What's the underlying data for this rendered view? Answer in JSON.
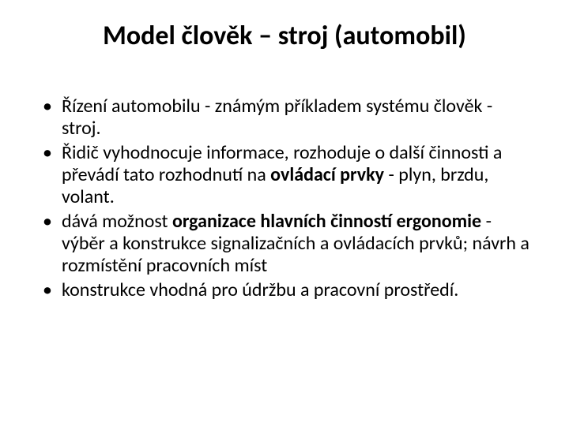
{
  "title": "Model člověk – stroj (automobil)",
  "bullets": [
    {
      "segments": [
        {
          "text": "Řízení automobilu  - známým příkladem systému člověk - stroj.",
          "bold": false
        }
      ]
    },
    {
      "segments": [
        {
          "text": "Řidič vyhodnocuje informace, rozhoduje o další činnosti a převádí tato rozhodnutí na ",
          "bold": false
        },
        {
          "text": "ovládací prvky",
          "bold": true
        },
        {
          "text": " - plyn, brzdu, volant.",
          "bold": false
        }
      ]
    },
    {
      "segments": [
        {
          "text": "dává možnost ",
          "bold": false
        },
        {
          "text": "organizace hlavních činností ergonomie",
          "bold": true
        },
        {
          "text": " -  výběr a konstrukce signalizačních a ovládacích prvků; návrh a rozmístění pracovních míst",
          "bold": false
        }
      ]
    },
    {
      "segments": [
        {
          "text": "konstrukce vhodná pro údržbu a pracovní prostředí.",
          "bold": false
        }
      ]
    }
  ]
}
